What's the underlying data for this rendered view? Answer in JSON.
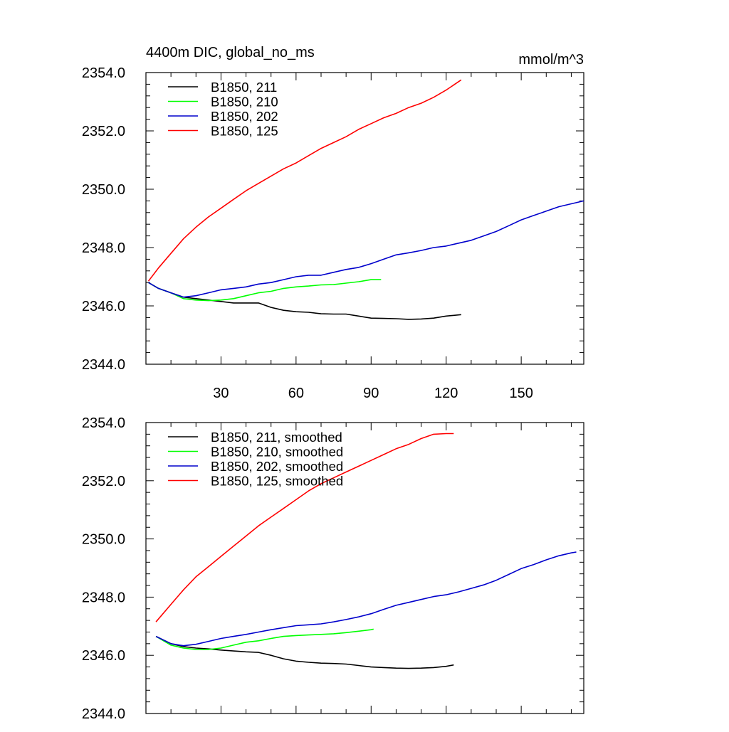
{
  "chart_data": [
    {
      "type": "line",
      "title": "4400m DIC, global_no_ms",
      "units": "mmol/m^3",
      "xlim": [
        0,
        175
      ],
      "ylim": [
        2344.0,
        2354.0
      ],
      "xticks": [
        30,
        60,
        90,
        120,
        150
      ],
      "xtick_labels": [
        "30",
        "60",
        "90",
        "120",
        "150"
      ],
      "yticks": [
        2344.0,
        2346.0,
        2348.0,
        2350.0,
        2352.0,
        2354.0
      ],
      "ytick_labels": [
        "2344.0",
        "2346.0",
        "2348.0",
        "2350.0",
        "2352.0",
        "2354.0"
      ],
      "legend_position": "top-left",
      "series": [
        {
          "name": "B1850, 211",
          "color": "#000000",
          "x": [
            1,
            5,
            10,
            15,
            20,
            25,
            30,
            35,
            40,
            45,
            50,
            55,
            60,
            65,
            70,
            75,
            80,
            85,
            90,
            95,
            100,
            105,
            110,
            115,
            120,
            126
          ],
          "y": [
            2346.8,
            2346.6,
            2346.45,
            2346.3,
            2346.25,
            2346.2,
            2346.15,
            2346.1,
            2346.1,
            2346.1,
            2345.95,
            2345.85,
            2345.8,
            2345.78,
            2345.73,
            2345.72,
            2345.72,
            2345.65,
            2345.58,
            2345.57,
            2345.56,
            2345.54,
            2345.55,
            2345.58,
            2345.65,
            2345.7
          ]
        },
        {
          "name": "B1850, 210",
          "color": "#00ff00",
          "x": [
            1,
            5,
            10,
            15,
            20,
            25,
            30,
            35,
            40,
            45,
            50,
            55,
            60,
            65,
            70,
            75,
            80,
            85,
            90,
            94
          ],
          "y": [
            2346.8,
            2346.6,
            2346.45,
            2346.25,
            2346.2,
            2346.18,
            2346.2,
            2346.25,
            2346.35,
            2346.45,
            2346.5,
            2346.6,
            2346.65,
            2346.68,
            2346.72,
            2346.73,
            2346.78,
            2346.83,
            2346.9,
            2346.9
          ]
        },
        {
          "name": "B1850, 202",
          "color": "#0000cc",
          "x": [
            1,
            5,
            10,
            15,
            20,
            25,
            30,
            35,
            40,
            45,
            50,
            55,
            60,
            65,
            70,
            75,
            80,
            85,
            90,
            95,
            100,
            105,
            110,
            115,
            120,
            125,
            130,
            135,
            140,
            145,
            150,
            155,
            160,
            165,
            170,
            175
          ],
          "y": [
            2346.8,
            2346.6,
            2346.45,
            2346.3,
            2346.35,
            2346.45,
            2346.55,
            2346.6,
            2346.65,
            2346.75,
            2346.8,
            2346.9,
            2347.0,
            2347.05,
            2347.05,
            2347.15,
            2347.25,
            2347.32,
            2347.45,
            2347.6,
            2347.75,
            2347.82,
            2347.9,
            2348.0,
            2348.05,
            2348.15,
            2348.25,
            2348.4,
            2348.55,
            2348.75,
            2348.95,
            2349.1,
            2349.25,
            2349.4,
            2349.5,
            2349.6
          ]
        },
        {
          "name": "B1850, 125",
          "color": "#ff0000",
          "x": [
            1,
            5,
            10,
            15,
            20,
            25,
            30,
            35,
            40,
            45,
            50,
            55,
            60,
            65,
            70,
            75,
            80,
            85,
            90,
            95,
            100,
            105,
            110,
            115,
            120,
            126
          ],
          "y": [
            2346.85,
            2347.3,
            2347.8,
            2348.3,
            2348.7,
            2349.05,
            2349.35,
            2349.65,
            2349.95,
            2350.2,
            2350.45,
            2350.7,
            2350.9,
            2351.15,
            2351.4,
            2351.6,
            2351.8,
            2352.05,
            2352.25,
            2352.45,
            2352.6,
            2352.8,
            2352.95,
            2353.15,
            2353.4,
            2353.75
          ]
        }
      ]
    },
    {
      "type": "line",
      "title": "",
      "units": "",
      "xlim": [
        0,
        175
      ],
      "ylim": [
        2344.0,
        2354.0
      ],
      "xticks": [
        30,
        60,
        90,
        120,
        150
      ],
      "xtick_labels": [],
      "yticks": [
        2344.0,
        2346.0,
        2348.0,
        2350.0,
        2352.0,
        2354.0
      ],
      "ytick_labels": [
        "2344.0",
        "2346.0",
        "2348.0",
        "2350.0",
        "2352.0",
        "2354.0"
      ],
      "legend_position": "top-left",
      "series": [
        {
          "name": "B1850, 211, smoothed",
          "color": "#000000",
          "x": [
            4,
            10,
            15,
            20,
            25,
            30,
            35,
            40,
            45,
            50,
            55,
            60,
            65,
            70,
            75,
            80,
            85,
            90,
            95,
            100,
            105,
            110,
            115,
            120,
            123
          ],
          "y": [
            2346.65,
            2346.4,
            2346.3,
            2346.25,
            2346.22,
            2346.18,
            2346.15,
            2346.12,
            2346.1,
            2346.0,
            2345.88,
            2345.8,
            2345.76,
            2345.73,
            2345.72,
            2345.7,
            2345.65,
            2345.6,
            2345.58,
            2345.56,
            2345.55,
            2345.56,
            2345.58,
            2345.62,
            2345.67
          ]
        },
        {
          "name": "B1850, 210, smoothed",
          "color": "#00ff00",
          "x": [
            4,
            10,
            15,
            20,
            25,
            30,
            35,
            40,
            45,
            50,
            55,
            60,
            65,
            70,
            75,
            80,
            85,
            90,
            91
          ],
          "y": [
            2346.65,
            2346.35,
            2346.25,
            2346.2,
            2346.2,
            2346.25,
            2346.35,
            2346.45,
            2346.5,
            2346.58,
            2346.65,
            2346.68,
            2346.7,
            2346.72,
            2346.74,
            2346.78,
            2346.83,
            2346.88,
            2346.9
          ]
        },
        {
          "name": "B1850, 202, smoothed",
          "color": "#0000cc",
          "x": [
            4,
            10,
            15,
            20,
            25,
            30,
            35,
            40,
            45,
            50,
            55,
            60,
            65,
            70,
            75,
            80,
            85,
            90,
            95,
            100,
            105,
            110,
            115,
            120,
            125,
            130,
            135,
            140,
            145,
            150,
            155,
            160,
            165,
            170,
            172
          ],
          "y": [
            2346.65,
            2346.4,
            2346.33,
            2346.38,
            2346.48,
            2346.58,
            2346.65,
            2346.72,
            2346.8,
            2346.88,
            2346.95,
            2347.02,
            2347.05,
            2347.08,
            2347.15,
            2347.23,
            2347.32,
            2347.43,
            2347.58,
            2347.72,
            2347.82,
            2347.92,
            2348.02,
            2348.08,
            2348.18,
            2348.3,
            2348.42,
            2348.58,
            2348.78,
            2348.98,
            2349.12,
            2349.28,
            2349.42,
            2349.52,
            2349.55
          ]
        },
        {
          "name": "B1850, 125, smoothed",
          "color": "#ff0000",
          "x": [
            4,
            10,
            15,
            20,
            25,
            30,
            35,
            40,
            45,
            50,
            55,
            60,
            65,
            70,
            75,
            80,
            85,
            90,
            95,
            100,
            105,
            110,
            115,
            120,
            123
          ],
          "y": [
            2347.15,
            2347.75,
            2348.25,
            2348.7,
            2349.05,
            2349.4,
            2349.75,
            2350.1,
            2350.45,
            2350.75,
            2351.05,
            2351.35,
            2351.65,
            2351.9,
            2352.1,
            2352.3,
            2352.5,
            2352.7,
            2352.9,
            2353.1,
            2353.25,
            2353.45,
            2353.6,
            2353.62,
            2353.62
          ]
        }
      ]
    }
  ]
}
